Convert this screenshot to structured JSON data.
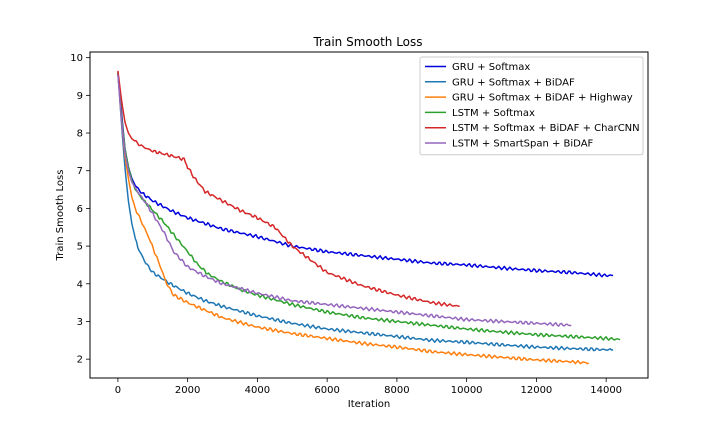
{
  "chart_data": {
    "type": "line",
    "title": "Train Smooth Loss",
    "xlabel": "Iteration",
    "ylabel": "Train Smooth Loss",
    "xlim": [
      -800,
      15200
    ],
    "ylim": [
      1.5,
      10.15
    ],
    "xticks": [
      0,
      2000,
      4000,
      6000,
      8000,
      10000,
      12000,
      14000
    ],
    "yticks": [
      2,
      3,
      4,
      5,
      6,
      7,
      8,
      9,
      10
    ],
    "grid": false,
    "legend_position": "top-right",
    "series": [
      {
        "name": "GRU + Softmax",
        "color": "#0000dd",
        "x": [
          0,
          100,
          200,
          300,
          400,
          500,
          700,
          1000,
          1500,
          2000,
          2500,
          3000,
          4000,
          5000,
          6000,
          7000,
          8000,
          9000,
          10000,
          11000,
          12000,
          13000,
          14000,
          14200
        ],
        "y": [
          9.6,
          8.6,
          7.6,
          7.1,
          6.8,
          6.6,
          6.4,
          6.2,
          5.95,
          5.75,
          5.6,
          5.45,
          5.25,
          5.0,
          4.85,
          4.75,
          4.65,
          4.55,
          4.5,
          4.42,
          4.35,
          4.3,
          4.22,
          4.22
        ]
      },
      {
        "name": "GRU + Softmax + BiDAF",
        "color": "#1f77b4",
        "x": [
          0,
          100,
          200,
          300,
          400,
          500,
          600,
          800,
          1000,
          1500,
          2000,
          2500,
          3000,
          4000,
          5000,
          6000,
          7000,
          8000,
          9000,
          10000,
          11000,
          12000,
          13000,
          14000,
          14200
        ],
        "y": [
          9.6,
          8.3,
          7.1,
          6.2,
          5.6,
          5.2,
          4.9,
          4.55,
          4.3,
          4.0,
          3.75,
          3.55,
          3.4,
          3.15,
          2.95,
          2.8,
          2.7,
          2.6,
          2.5,
          2.45,
          2.38,
          2.32,
          2.28,
          2.25,
          2.25
        ]
      },
      {
        "name": "GRU + Softmax + BiDAF + Highway",
        "color": "#ff7f0e",
        "x": [
          0,
          100,
          200,
          300,
          400,
          500,
          700,
          900,
          1200,
          1400,
          1600,
          2000,
          2500,
          3000,
          4000,
          5000,
          6000,
          7000,
          8000,
          9000,
          10000,
          11000,
          12000,
          13000,
          13500
        ],
        "y": [
          9.6,
          8.4,
          7.4,
          6.8,
          6.3,
          6.0,
          5.6,
          5.2,
          4.5,
          4.0,
          3.7,
          3.5,
          3.3,
          3.1,
          2.85,
          2.68,
          2.55,
          2.42,
          2.32,
          2.2,
          2.12,
          2.05,
          1.98,
          1.93,
          1.9
        ]
      },
      {
        "name": "LSTM + Softmax",
        "color": "#2ca02c",
        "x": [
          0,
          100,
          200,
          300,
          400,
          500,
          700,
          1000,
          1300,
          1600,
          2000,
          2300,
          2600,
          3000,
          3500,
          4000,
          5000,
          6000,
          7000,
          8000,
          9000,
          10000,
          11000,
          12000,
          13000,
          14000,
          14400
        ],
        "y": [
          9.6,
          8.5,
          7.6,
          7.1,
          6.75,
          6.5,
          6.25,
          5.95,
          5.65,
          5.3,
          4.85,
          4.5,
          4.25,
          4.05,
          3.85,
          3.7,
          3.45,
          3.25,
          3.1,
          3.0,
          2.9,
          2.8,
          2.72,
          2.65,
          2.6,
          2.55,
          2.52
        ]
      },
      {
        "name": "LSTM + Softmax + BiDAF + CharCNN",
        "color": "#d62728",
        "x": [
          0,
          100,
          200,
          300,
          400,
          600,
          800,
          1000,
          1300,
          1600,
          1900,
          2000,
          2200,
          2500,
          3000,
          3500,
          4000,
          4500,
          5000,
          5500,
          6000,
          7000,
          8000,
          9000,
          9800
        ],
        "y": [
          9.65,
          8.9,
          8.3,
          8.0,
          7.85,
          7.7,
          7.6,
          7.52,
          7.45,
          7.38,
          7.3,
          7.1,
          6.8,
          6.45,
          6.2,
          5.95,
          5.75,
          5.5,
          5.0,
          4.65,
          4.3,
          3.95,
          3.7,
          3.5,
          3.4
        ]
      },
      {
        "name": "LSTM + SmartSpan + BiDAF",
        "color": "#9467bd",
        "x": [
          0,
          100,
          200,
          300,
          400,
          600,
          800,
          1000,
          1300,
          1600,
          2000,
          2500,
          3000,
          4000,
          5000,
          6000,
          7000,
          8000,
          9000,
          10000,
          11000,
          12000,
          13000
        ],
        "y": [
          9.55,
          8.4,
          7.5,
          7.0,
          6.7,
          6.4,
          6.15,
          5.85,
          5.4,
          4.85,
          4.45,
          4.2,
          4.0,
          3.75,
          3.55,
          3.45,
          3.35,
          3.25,
          3.15,
          3.05,
          3.0,
          2.95,
          2.9
        ]
      }
    ]
  }
}
